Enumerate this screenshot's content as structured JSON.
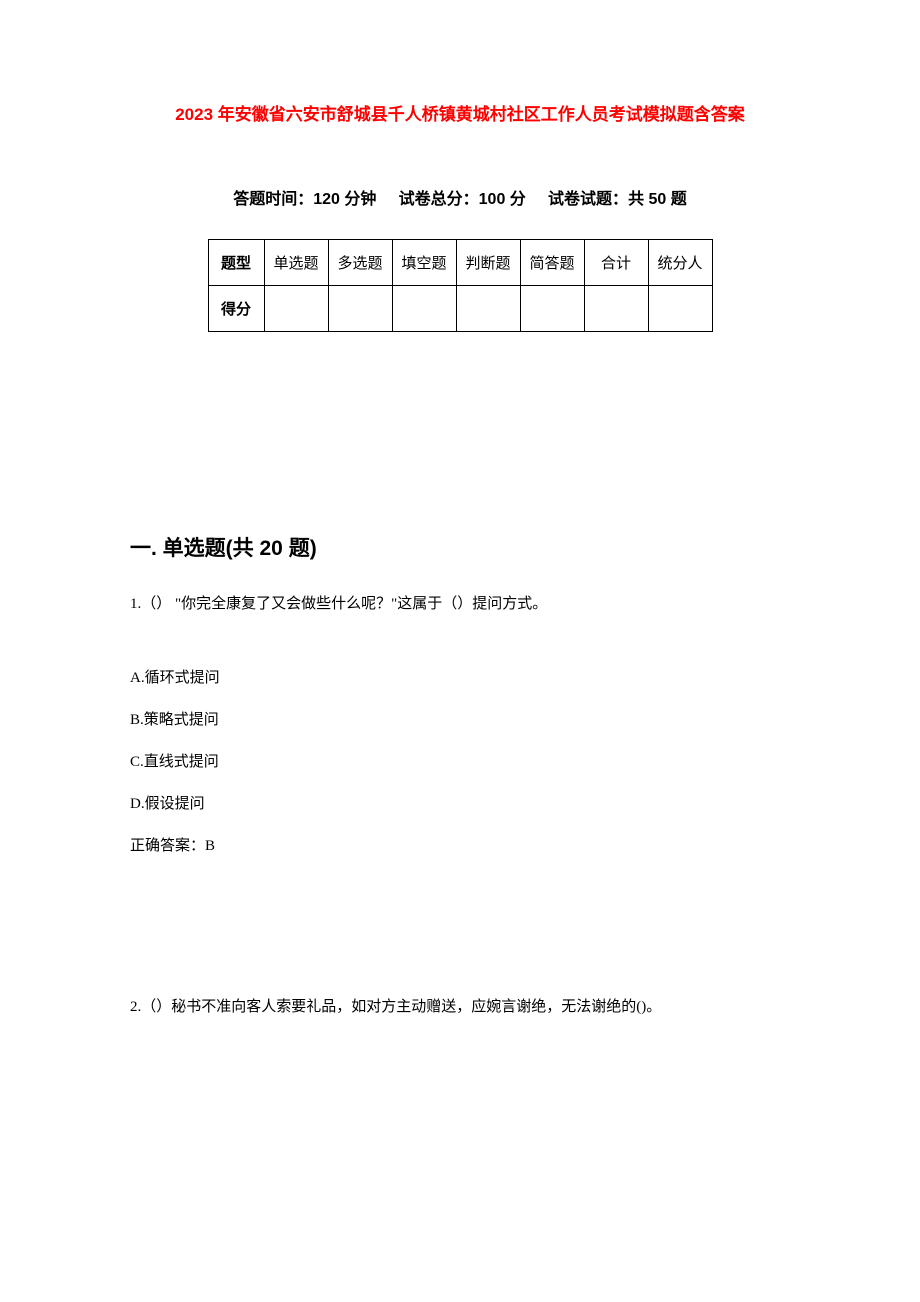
{
  "title": "2023 年安徽省六安市舒城县千人桥镇黄城村社区工作人员考试模拟题含答案",
  "examInfo": {
    "timeLabel": "答题时间：",
    "timeValue": "120 分钟",
    "scoreLabel": "试卷总分：",
    "scoreValue": "100 分",
    "countLabel": "试卷试题：",
    "countValue": "共 50 题"
  },
  "scoreTable": {
    "row1Label": "题型",
    "columns": [
      "单选题",
      "多选题",
      "填空题",
      "判断题",
      "简答题",
      "合计",
      "统分人"
    ],
    "row2Label": "得分",
    "row2Values": [
      "",
      "",
      "",
      "",
      "",
      "",
      ""
    ]
  },
  "section1": {
    "heading": "一. 单选题(共 20 题)",
    "q1": {
      "text": "1.（） \"你完全康复了又会做些什么呢？\"这属于（）提问方式。",
      "optA": "A.循环式提问",
      "optB": "B.策略式提问",
      "optC": "C.直线式提问",
      "optD": "D.假设提问",
      "answer": "正确答案：B"
    },
    "q2": {
      "text": "2.（）秘书不准向客人索要礼品，如对方主动赠送，应婉言谢绝，无法谢绝的()。"
    }
  },
  "styling": {
    "titleColor": "#ff0000",
    "textColor": "#000000",
    "backgroundColor": "#ffffff",
    "borderColor": "#000000",
    "titleFontSize": 17,
    "infoFontSize": 16,
    "headingFontSize": 21,
    "bodyFontSize": 15,
    "pageWidth": 920,
    "pageHeight": 1302
  }
}
